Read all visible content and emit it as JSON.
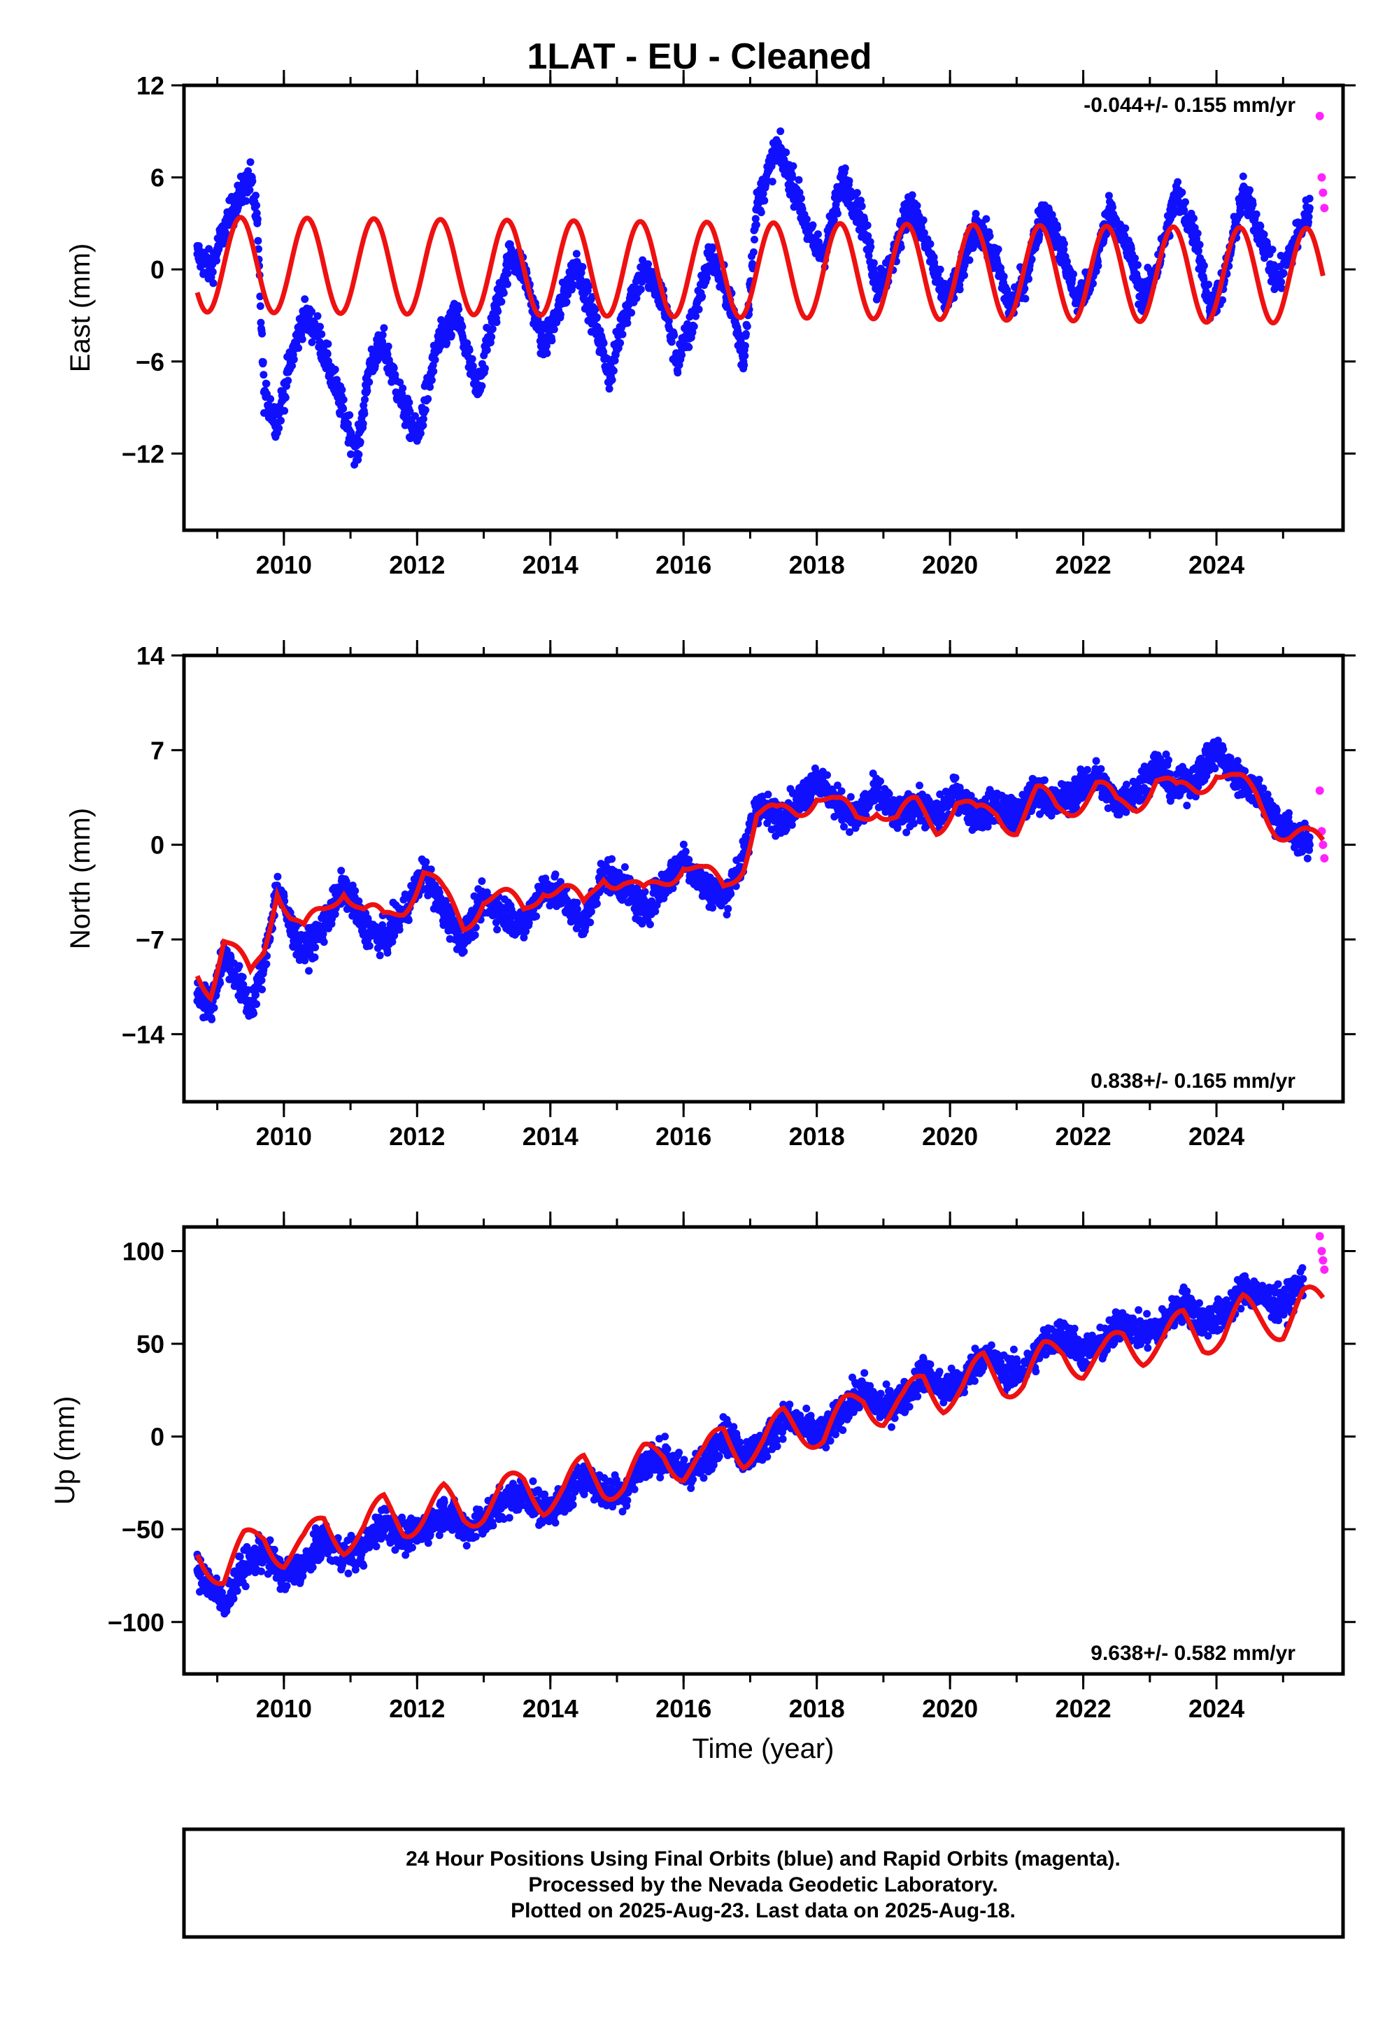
{
  "title": "1LAT  - EU - Cleaned",
  "xlabel": "Time (year)",
  "footer": {
    "lines": [
      "24 Hour Positions Using Final Orbits (blue) and Rapid Orbits (magenta).",
      "Processed by the Nevada Geodetic Laboratory.",
      "Plotted on 2025-Aug-23. Last data on 2025-Aug-18."
    ]
  },
  "colors": {
    "final_orbits": "#1010ff",
    "rapid_orbits": "#ff22ff",
    "model": "#ee1111",
    "frame": "#000000"
  },
  "chart_data": [
    {
      "type": "scatter",
      "panel": "east",
      "ylabel": "East (mm)",
      "rate": "-0.044+/- 0.155 mm/yr",
      "xlim": [
        2008.5,
        2025.9
      ],
      "ylim": [
        -17,
        12
      ],
      "xticks": [
        2010,
        2012,
        2014,
        2016,
        2018,
        2020,
        2022,
        2024
      ],
      "xtick_labels": [
        "2010",
        "2012",
        "2014",
        "2016",
        "2018",
        "2020",
        "2022",
        "2024"
      ],
      "yticks": [
        12,
        6,
        0,
        -6,
        -12
      ],
      "ytick_labels": [
        "12",
        "6",
        "0",
        "−6",
        "−12"
      ],
      "series": [
        {
          "role": "final",
          "x": [
            2008.7,
            2008.9,
            2009.1,
            2009.3,
            2009.5,
            2009.6,
            2009.7,
            2009.9,
            2010.1,
            2010.3,
            2010.5,
            2010.8,
            2011.1,
            2011.3,
            2011.5,
            2011.8,
            2012.0,
            2012.3,
            2012.6,
            2012.9,
            2013.1,
            2013.4,
            2013.6,
            2013.9,
            2014.1,
            2014.4,
            2014.7,
            2014.9,
            2015.1,
            2015.4,
            2015.7,
            2015.9,
            2016.1,
            2016.4,
            2016.7,
            2016.9,
            2017.1,
            2017.4,
            2017.7,
            2017.9,
            2018.1,
            2018.4,
            2018.7,
            2018.9,
            2019.1,
            2019.4,
            2019.7,
            2019.9,
            2020.1,
            2020.4,
            2020.7,
            2020.9,
            2021.1,
            2021.4,
            2021.7,
            2021.9,
            2022.1,
            2022.4,
            2022.7,
            2022.9,
            2023.1,
            2023.4,
            2023.7,
            2023.9,
            2024.1,
            2024.4,
            2024.7,
            2024.9,
            2025.1,
            2025.4
          ],
          "y": [
            1.0,
            0.0,
            2.5,
            4.5,
            6.0,
            3.0,
            -8.0,
            -10.0,
            -6.0,
            -3.0,
            -4.0,
            -8.0,
            -12.0,
            -6.0,
            -5.0,
            -9.0,
            -11.0,
            -5.0,
            -3.0,
            -8.0,
            -4.0,
            1.0,
            0.0,
            -5.0,
            -3.0,
            0.5,
            -4.0,
            -7.0,
            -3.0,
            0.0,
            -2.0,
            -6.0,
            -4.0,
            1.0,
            -2.0,
            -6.0,
            4.0,
            8.0,
            5.0,
            2.0,
            1.0,
            6.0,
            3.0,
            -1.0,
            0.0,
            4.5,
            1.0,
            -2.0,
            -1.0,
            3.0,
            0.5,
            -2.5,
            -1.0,
            4.0,
            1.0,
            -2.0,
            -1.0,
            4.0,
            1.0,
            -2.0,
            0.0,
            5.0,
            2.0,
            -2.5,
            -1.0,
            5.0,
            2.0,
            -1.0,
            1.0,
            4.0
          ]
        },
        {
          "role": "rapid",
          "x": [
            2025.55,
            2025.58,
            2025.6,
            2025.62
          ],
          "y": [
            10.0,
            6.0,
            5.0,
            4.0
          ]
        }
      ],
      "model": {
        "offset": 0.0,
        "slope": -0.044,
        "amplitude": 3.1,
        "phase_year": 2009.35
      }
    },
    {
      "type": "scatter",
      "panel": "north",
      "ylabel": "North (mm)",
      "rate": "0.838+/- 0.165 mm/yr",
      "xlim": [
        2008.5,
        2025.9
      ],
      "ylim": [
        -19,
        14
      ],
      "xticks": [
        2010,
        2012,
        2014,
        2016,
        2018,
        2020,
        2022,
        2024
      ],
      "xtick_labels": [
        "2010",
        "2012",
        "2014",
        "2016",
        "2018",
        "2020",
        "2022",
        "2024"
      ],
      "yticks": [
        14,
        7,
        0,
        -7,
        -14
      ],
      "ytick_labels": [
        "14",
        "7",
        "0",
        "−7",
        "−14"
      ],
      "series": [
        {
          "role": "final",
          "x": [
            2008.7,
            2008.9,
            2009.1,
            2009.3,
            2009.5,
            2009.7,
            2009.9,
            2010.1,
            2010.3,
            2010.6,
            2010.9,
            2011.2,
            2011.5,
            2011.8,
            2012.1,
            2012.4,
            2012.7,
            2013.0,
            2013.3,
            2013.6,
            2013.9,
            2014.2,
            2014.5,
            2014.8,
            2015.1,
            2015.4,
            2015.7,
            2016.0,
            2016.3,
            2016.6,
            2016.9,
            2017.1,
            2017.4,
            2017.7,
            2018.0,
            2018.3,
            2018.6,
            2018.9,
            2019.2,
            2019.5,
            2019.8,
            2020.1,
            2020.4,
            2020.7,
            2021.0,
            2021.3,
            2021.6,
            2021.9,
            2022.2,
            2022.5,
            2022.8,
            2023.1,
            2023.4,
            2023.7,
            2024.0,
            2024.3,
            2024.6,
            2024.9,
            2025.1,
            2025.4
          ],
          "y": [
            -11.0,
            -12.0,
            -8.0,
            -10.0,
            -12.0,
            -9.0,
            -3.0,
            -6.0,
            -8.0,
            -6.0,
            -3.0,
            -6.0,
            -7.0,
            -5.0,
            -2.0,
            -5.0,
            -7.0,
            -4.0,
            -5.0,
            -6.0,
            -3.0,
            -4.0,
            -6.0,
            -2.0,
            -3.0,
            -5.0,
            -3.0,
            -1.0,
            -3.0,
            -4.0,
            -1.0,
            3.0,
            2.0,
            3.0,
            5.0,
            3.0,
            2.0,
            4.0,
            2.0,
            3.0,
            2.0,
            4.0,
            2.0,
            3.0,
            2.0,
            4.0,
            3.0,
            4.0,
            5.0,
            3.0,
            4.0,
            6.0,
            4.0,
            5.0,
            7.0,
            5.0,
            4.0,
            2.0,
            1.0,
            0.0
          ]
        },
        {
          "role": "rapid",
          "x": [
            2025.55,
            2025.58,
            2025.6,
            2025.62
          ],
          "y": [
            4.0,
            1.0,
            0.0,
            -1.0
          ]
        }
      ]
    },
    {
      "type": "scatter",
      "panel": "up",
      "ylabel": "Up (mm)",
      "rate": "9.638+/- 0.582 mm/yr",
      "xlim": [
        2008.5,
        2025.9
      ],
      "ylim": [
        -128,
        113
      ],
      "xticks": [
        2010,
        2012,
        2014,
        2016,
        2018,
        2020,
        2022,
        2024
      ],
      "xtick_labels": [
        "2010",
        "2012",
        "2014",
        "2016",
        "2018",
        "2020",
        "2022",
        "2024"
      ],
      "yticks": [
        100,
        50,
        0,
        -50,
        -100
      ],
      "ytick_labels": [
        "100",
        "50",
        "0",
        "−50",
        "−100"
      ],
      "series": [
        {
          "role": "final",
          "x": [
            2008.7,
            2008.9,
            2009.1,
            2009.4,
            2009.7,
            2010.0,
            2010.3,
            2010.6,
            2010.9,
            2011.2,
            2011.5,
            2011.8,
            2012.1,
            2012.4,
            2012.7,
            2013.0,
            2013.3,
            2013.6,
            2013.9,
            2014.2,
            2014.5,
            2014.8,
            2015.1,
            2015.4,
            2015.7,
            2016.0,
            2016.3,
            2016.6,
            2016.9,
            2017.2,
            2017.5,
            2017.8,
            2018.1,
            2018.4,
            2018.7,
            2019.0,
            2019.3,
            2019.6,
            2019.9,
            2020.2,
            2020.5,
            2020.8,
            2021.1,
            2021.4,
            2021.7,
            2022.0,
            2022.3,
            2022.6,
            2022.9,
            2023.2,
            2023.5,
            2023.8,
            2024.1,
            2024.4,
            2024.7,
            2025.0,
            2025.3
          ],
          "y": [
            -72.0,
            -80.0,
            -90.0,
            -70.0,
            -62.0,
            -75.0,
            -70.0,
            -55.0,
            -65.0,
            -60.0,
            -45.0,
            -55.0,
            -50.0,
            -40.0,
            -50.0,
            -45.0,
            -35.0,
            -30.0,
            -40.0,
            -35.0,
            -20.0,
            -30.0,
            -30.0,
            -15.0,
            -10.0,
            -20.0,
            -15.0,
            2.0,
            -10.0,
            -5.0,
            10.0,
            5.0,
            0.0,
            15.0,
            25.0,
            15.0,
            20.0,
            35.0,
            25.0,
            30.0,
            45.0,
            35.0,
            35.0,
            50.0,
            55.0,
            45.0,
            50.0,
            62.0,
            55.0,
            60.0,
            72.0,
            62.0,
            65.0,
            80.0,
            75.0,
            70.0,
            85.0
          ]
        },
        {
          "role": "rapid",
          "x": [
            2025.55,
            2025.58,
            2025.6,
            2025.62
          ],
          "y": [
            108.0,
            100.0,
            95.0,
            90.0
          ]
        }
      ]
    }
  ]
}
